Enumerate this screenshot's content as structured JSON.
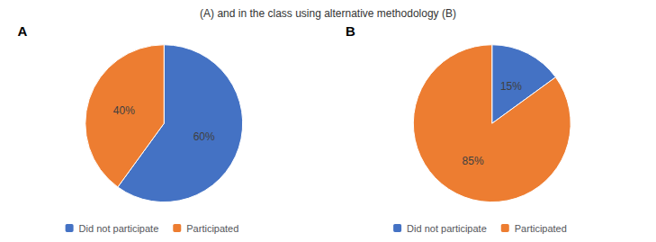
{
  "chart_data": [
    {
      "type": "pie",
      "title": "A",
      "subtitle": "(A) and in the class using alternative methodology (B)",
      "categories": [
        "Did not participate",
        "Participated"
      ],
      "values": [
        60,
        40
      ],
      "value_labels": [
        "60%",
        "40%"
      ],
      "colors": [
        "#4472C4",
        "#ED7D31"
      ],
      "data_labels": true,
      "legend": "bottom"
    },
    {
      "type": "pie",
      "title": "B",
      "categories": [
        "Did not participate",
        "Participated"
      ],
      "values": [
        15,
        85
      ],
      "value_labels": [
        "15%",
        "85%"
      ],
      "colors": [
        "#4472C4",
        "#ED7D31"
      ],
      "data_labels": true,
      "legend": "bottom"
    }
  ]
}
